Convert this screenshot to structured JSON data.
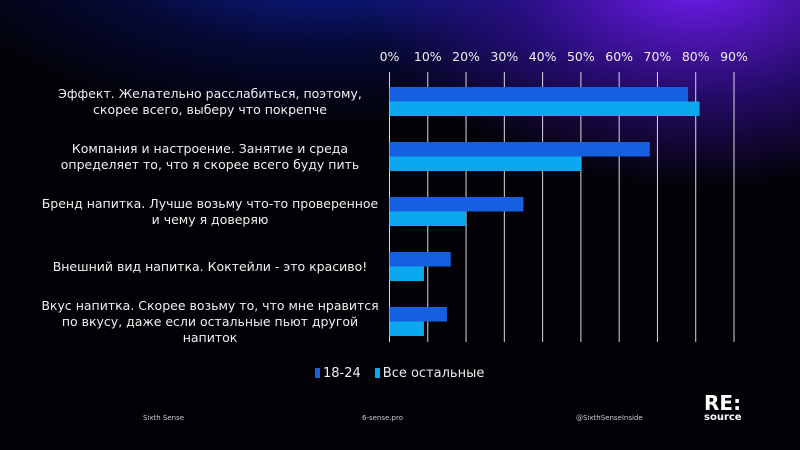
{
  "chart_data": {
    "type": "bar",
    "orientation": "horizontal",
    "categories": [
      "Эффект. Желательно расслабиться, поэтому, скорее всего, выберу что покрепче",
      "Компания и настроение. Занятие и среда определяет то, что я скорее всего буду пить",
      "Бренд напитка. Лучше возьму что-то проверенное и чему я доверяю",
      "Внешний вид напитка. Коктейли - это красиво!",
      "Вкус напитка. Скорее возьму то, что мне нравится по вкусу, даже если остальные пьют другой напиток"
    ],
    "series": [
      {
        "name": "18-24",
        "values": [
          78,
          68,
          35,
          16,
          15
        ],
        "color": "#1560e0"
      },
      {
        "name": "Все остальные",
        "values": [
          81,
          50,
          20,
          9,
          9
        ],
        "color": "#0ba8f0"
      }
    ],
    "xlim": [
      0,
      90
    ],
    "ticks": [
      "0%",
      "10%",
      "20%",
      "30%",
      "40%",
      "50%",
      "60%",
      "70%",
      "80%",
      "90%"
    ],
    "grid": true,
    "axis_position": "top",
    "legend": "bottom"
  },
  "footer": {
    "left": "Sixth Sense",
    "center": "6-sense.pro",
    "right": "@SixthSenseInside",
    "logo_top": "RE:",
    "logo_bottom": "source"
  }
}
